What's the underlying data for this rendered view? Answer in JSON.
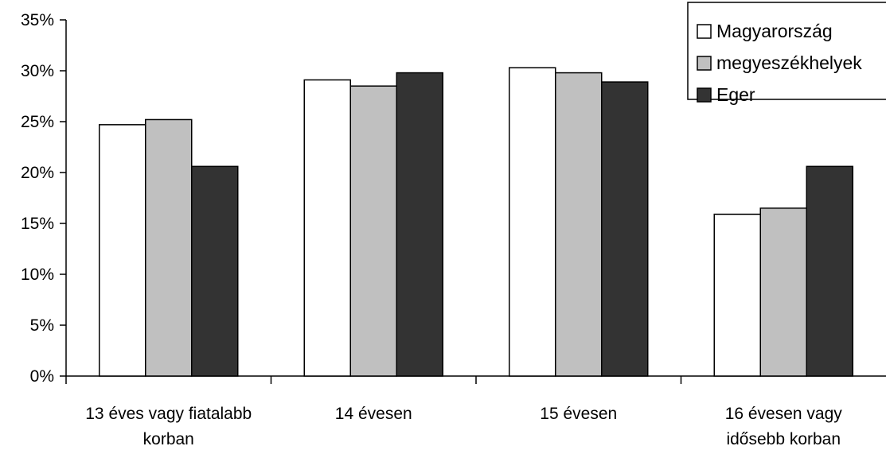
{
  "chart_data": {
    "type": "bar",
    "categories": [
      [
        "13 éves vagy fiatalabb",
        "korban"
      ],
      [
        "14 évesen"
      ],
      [
        "15 évesen"
      ],
      [
        "16 évesen vagy",
        "idősebb korban"
      ]
    ],
    "series": [
      {
        "name": "Magyarország",
        "color": "#ffffff",
        "values": [
          24.7,
          29.1,
          30.3,
          15.9
        ]
      },
      {
        "name": "megyeszékhelyek",
        "color": "#c0c0c0",
        "values": [
          25.2,
          28.5,
          29.8,
          16.5
        ]
      },
      {
        "name": "Eger",
        "color": "#333333",
        "values": [
          20.6,
          29.8,
          28.9,
          20.6
        ]
      }
    ],
    "y_ticks": [
      "0%",
      "5%",
      "10%",
      "15%",
      "20%",
      "25%",
      "30%",
      "35%"
    ],
    "ylim": [
      0,
      35
    ],
    "y_unit": "%",
    "title": "",
    "xlabel": "",
    "ylabel": "",
    "grid": false,
    "legend_position": "top-right"
  }
}
